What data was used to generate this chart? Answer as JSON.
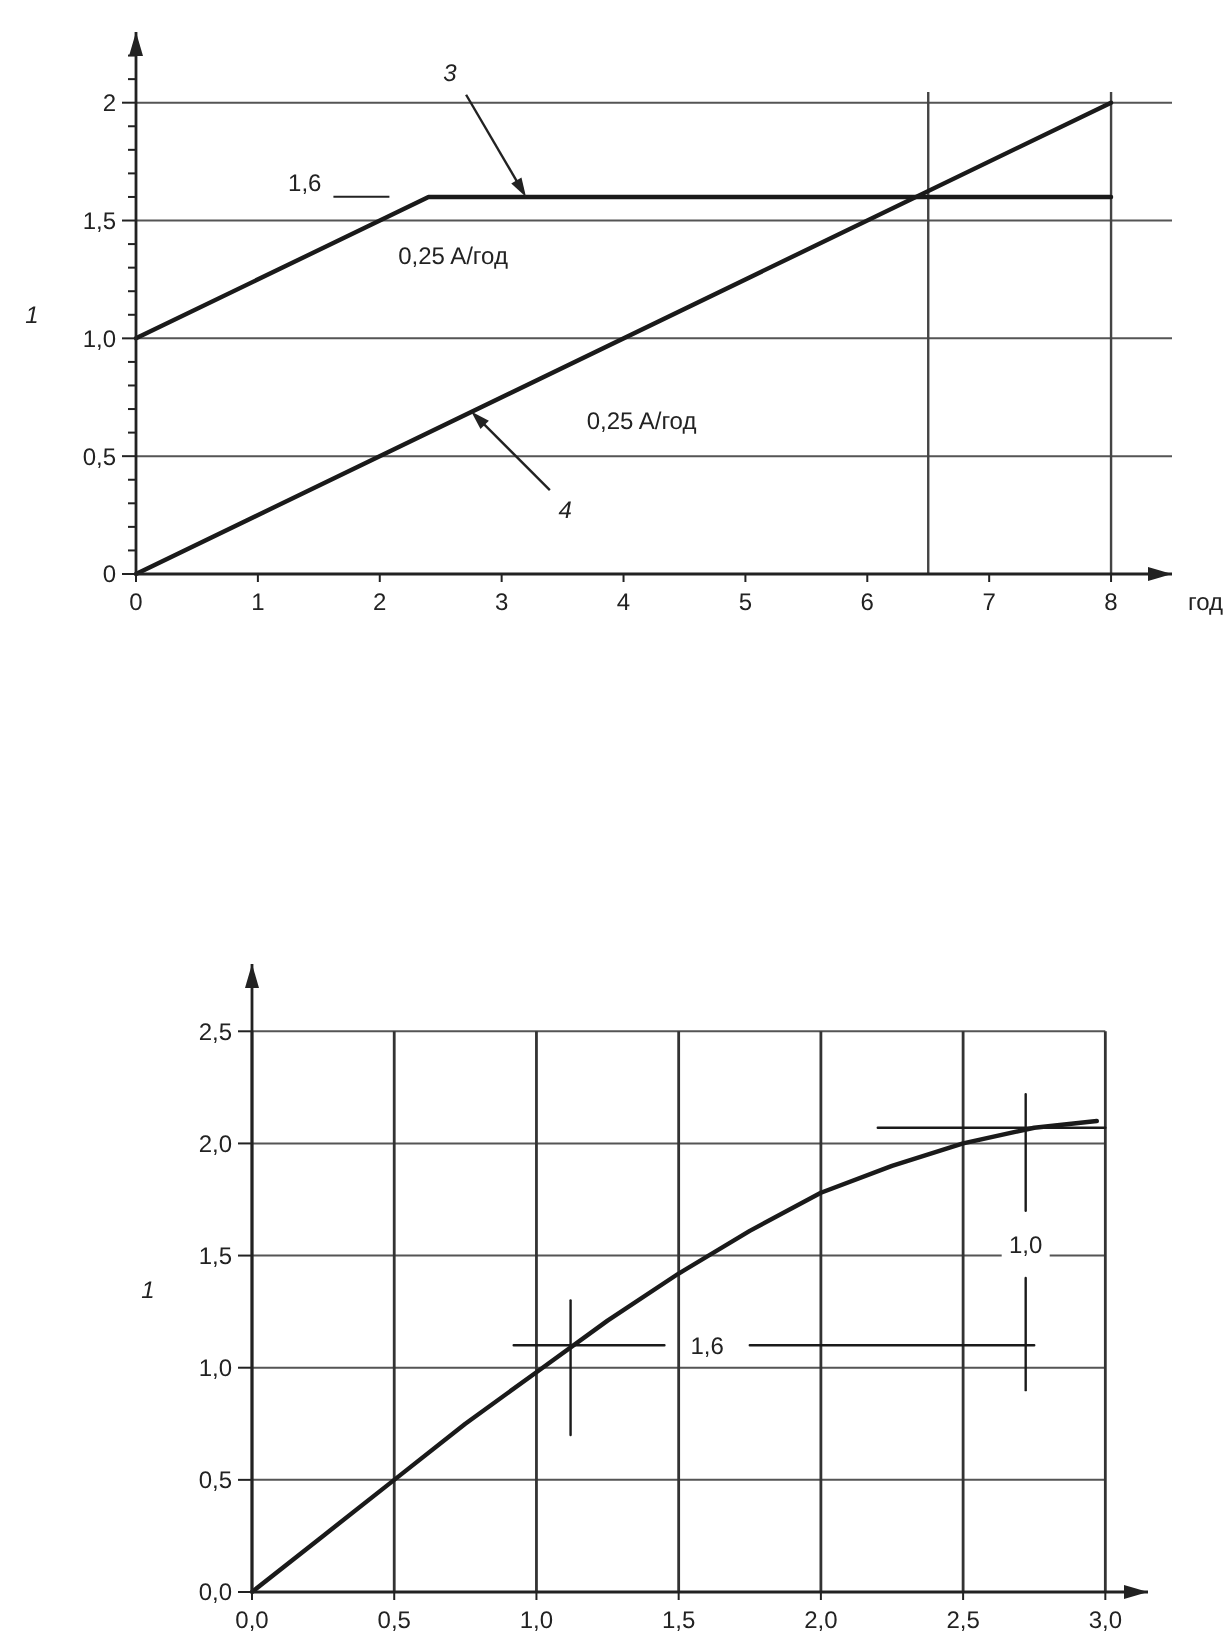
{
  "chart_data": [
    {
      "type": "line",
      "ylabel": "1",
      "xlabel": "год",
      "xlim": [
        0,
        8.5
      ],
      "ylim": [
        0,
        2.3
      ],
      "xticks": [
        0,
        1,
        2,
        3,
        4,
        5,
        6,
        7,
        8
      ],
      "yticks": [
        0,
        {
          "value": 0.1,
          "label": null
        },
        {
          "value": 0.2,
          "label": null
        },
        {
          "value": 0.3,
          "label": null
        },
        {
          "value": 0.4,
          "label": null
        },
        {
          "value": 0.5,
          "label": "0,5"
        },
        {
          "value": 0.6,
          "label": null
        },
        {
          "value": 0.7,
          "label": null
        },
        {
          "value": 0.8,
          "label": null
        },
        {
          "value": 0.9,
          "label": null
        },
        {
          "value": 1,
          "label": "1,0"
        },
        {
          "value": 1.1,
          "label": null
        },
        {
          "value": 1.2,
          "label": null
        },
        {
          "value": 1.3,
          "label": null
        },
        {
          "value": 1.4,
          "label": null
        },
        {
          "value": 1.5,
          "label": "1,5"
        },
        {
          "value": 1.6,
          "label": null
        },
        {
          "value": 1.7,
          "label": null
        },
        {
          "value": 1.8,
          "label": null
        },
        {
          "value": 1.9,
          "label": null
        },
        {
          "value": 2,
          "label": "2"
        },
        {
          "value": 2.1,
          "label": null
        },
        {
          "value": 2.2,
          "label": null
        }
      ],
      "grid": "y",
      "series": [
        {
          "color": "#1a1a1a",
          "x": [
            0,
            2.4,
            8
          ],
          "values": [
            1,
            1.6,
            1.6
          ]
        },
        {
          "color": "#1a1a1a",
          "x": [
            0,
            8
          ],
          "values": [
            0,
            2
          ]
        }
      ],
      "ref_lines": [
        {
          "axis": "x",
          "value": 6.5,
          "label": null
        },
        {
          "axis": "x",
          "value": 8,
          "label": null
        }
      ],
      "annotations": [
        "1,6",
        {
          "text": "3",
          "x": 3.2,
          "y": 1.6
        },
        "0,25 A/год",
        {
          "text": "4",
          "x": 2.75,
          "y": 0.69
        },
        "0,25 A/год"
      ]
    },
    {
      "type": "line",
      "ylabel": "1",
      "xlim": [
        0,
        3.15
      ],
      "ylim": [
        0,
        2.8
      ],
      "xticks": [
        {
          "value": 0,
          "label": "0,0"
        },
        {
          "value": 0.5,
          "label": "0,5"
        },
        {
          "value": 1,
          "label": "1,0"
        },
        {
          "value": 1.5,
          "label": "1,5"
        },
        {
          "value": 2,
          "label": "2,0"
        },
        {
          "value": 2.5,
          "label": "2,5"
        },
        {
          "value": 3,
          "label": "3,0"
        }
      ],
      "yticks": [
        {
          "value": 0,
          "label": "0,0"
        },
        {
          "value": 0.5,
          "label": "0,5"
        },
        {
          "value": 1,
          "label": "1,0"
        },
        {
          "value": 1.5,
          "label": "1,5"
        },
        {
          "value": 2,
          "label": "2,0"
        },
        {
          "value": 2.5,
          "label": "2,5"
        }
      ],
      "grid": true,
      "series": [
        {
          "color": "#1a1a1a",
          "x": [
            0,
            0.25,
            0.5,
            0.75,
            1,
            1.25,
            1.5,
            1.75,
            2,
            2.25,
            2.5,
            2.75,
            2.97
          ],
          "values": [
            0,
            0.25,
            0.5,
            0.75,
            0.98,
            1.21,
            1.42,
            1.61,
            1.78,
            1.9,
            2.0,
            2.07,
            2.1
          ]
        },
        {
          "color": "#1a1a1a",
          "x": [
            0.92,
            1.45,
            null,
            1.75,
            2.75
          ],
          "values": [
            1.1,
            1.1,
            null,
            1.1,
            1.1
          ]
        },
        {
          "color": "#1a1a1a",
          "x": [
            1.12,
            1.12
          ],
          "values": [
            0.7,
            1.3
          ]
        },
        {
          "color": "#1a1a1a",
          "x": [
            2.2,
            3
          ],
          "values": [
            2.07,
            2.07
          ]
        },
        {
          "color": "#1a1a1a",
          "x": [
            2.72,
            2.72
          ],
          "values": [
            0.9,
            1.4
          ]
        },
        {
          "color": "#1a1a1a",
          "x": [
            2.72,
            2.72
          ],
          "values": [
            1.7,
            2.22
          ]
        }
      ],
      "annotations": [
        {
          "text": "1,6",
          "x": 1.6,
          "y": 1.1
        },
        {
          "text": "1,0",
          "x": 2.72,
          "y": 1.55
        }
      ]
    }
  ]
}
